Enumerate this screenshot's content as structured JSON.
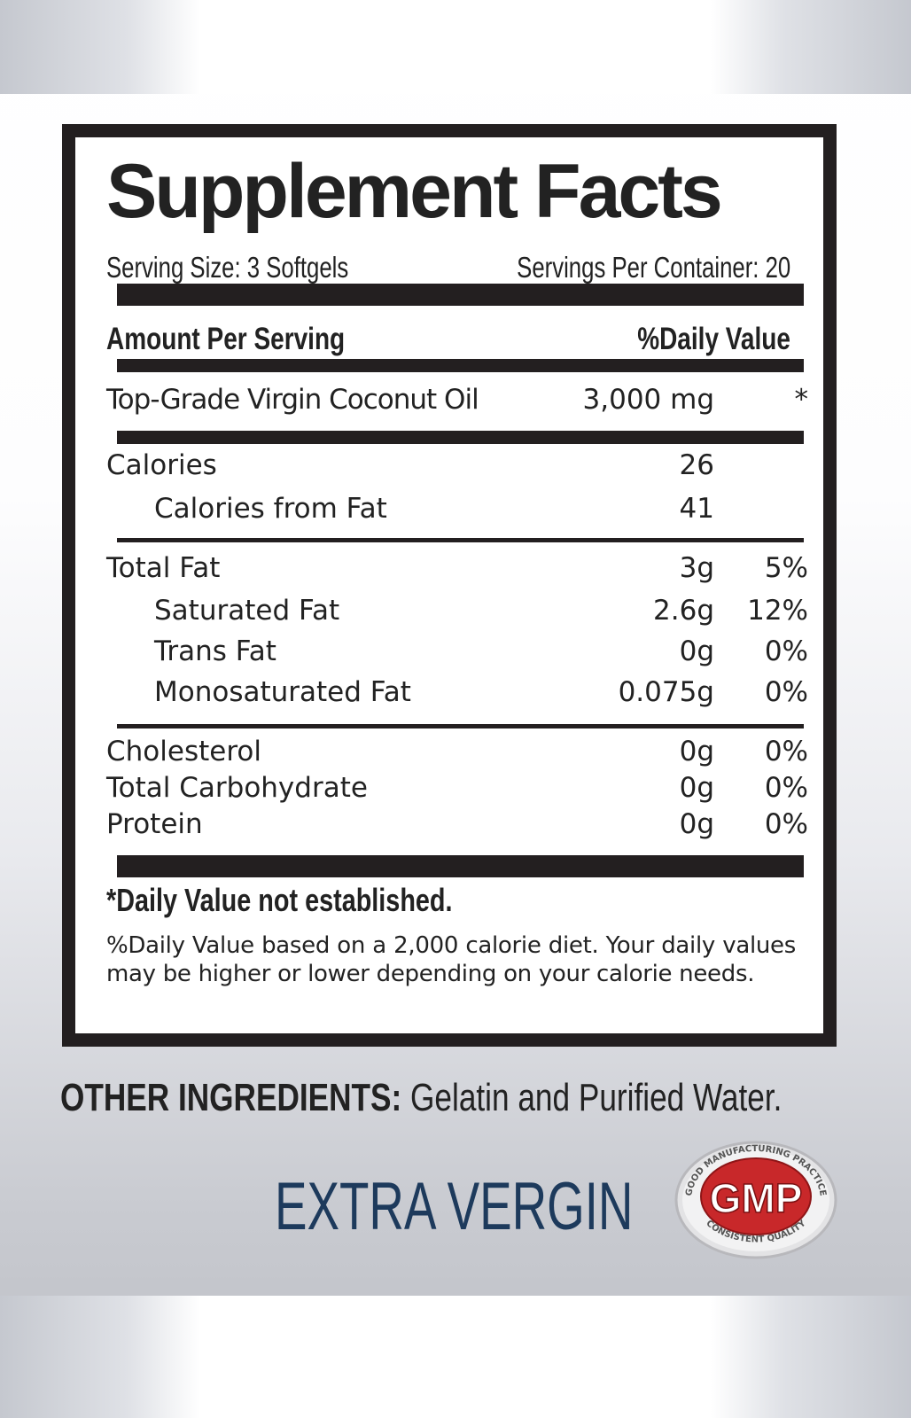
{
  "title": "Supplement Facts",
  "serving_size": "Serving Size: 3 Softgels",
  "servings_per_container": "Servings Per Container: 20",
  "header": {
    "amount": "Amount Per Serving",
    "dv": "%Daily Value"
  },
  "main_ingredient": {
    "name": "Top-Grade Virgin Coconut Oil",
    "amount": "3,000 mg",
    "dv": "*"
  },
  "calories": [
    {
      "name": "Calories",
      "amount": "26"
    },
    {
      "name": "Calories from Fat",
      "amount": "41"
    }
  ],
  "fats": [
    {
      "name": "Total Fat",
      "amount": "3g",
      "dv": "5%"
    },
    {
      "name": "Saturated Fat",
      "amount": "2.6g",
      "dv": "12%"
    },
    {
      "name": "Trans Fat",
      "amount": "0g",
      "dv": "0%"
    },
    {
      "name": "Monosaturated Fat",
      "amount": "0.075g",
      "dv": "0%"
    }
  ],
  "others": [
    {
      "name": "Cholesterol",
      "amount": "0g",
      "dv": "0%"
    },
    {
      "name": "Total Carbohydrate",
      "amount": "0g",
      "dv": "0%"
    },
    {
      "name": "Protein",
      "amount": "0g",
      "dv": "0%"
    }
  ],
  "note_bold": "*Daily Value not established.",
  "note": "%Daily Value based on a 2,000 calorie diet. Your daily values may be higher or lower depending on your calorie needs.",
  "other_ingredients": {
    "label": "OTHER INGREDIENTS:",
    "value": "Gelatin and Purified Water."
  },
  "tagline": "EXTRA VERGIN",
  "badge": {
    "text": "GMP",
    "ring_top": "GOOD MANUFACTURING PRACTICE",
    "ring_bottom": "CONSISTENT QUALITY"
  },
  "colors": {
    "tagline": "#1d3a5c",
    "badge_red": "#c8282a",
    "ink": "#231f20"
  }
}
